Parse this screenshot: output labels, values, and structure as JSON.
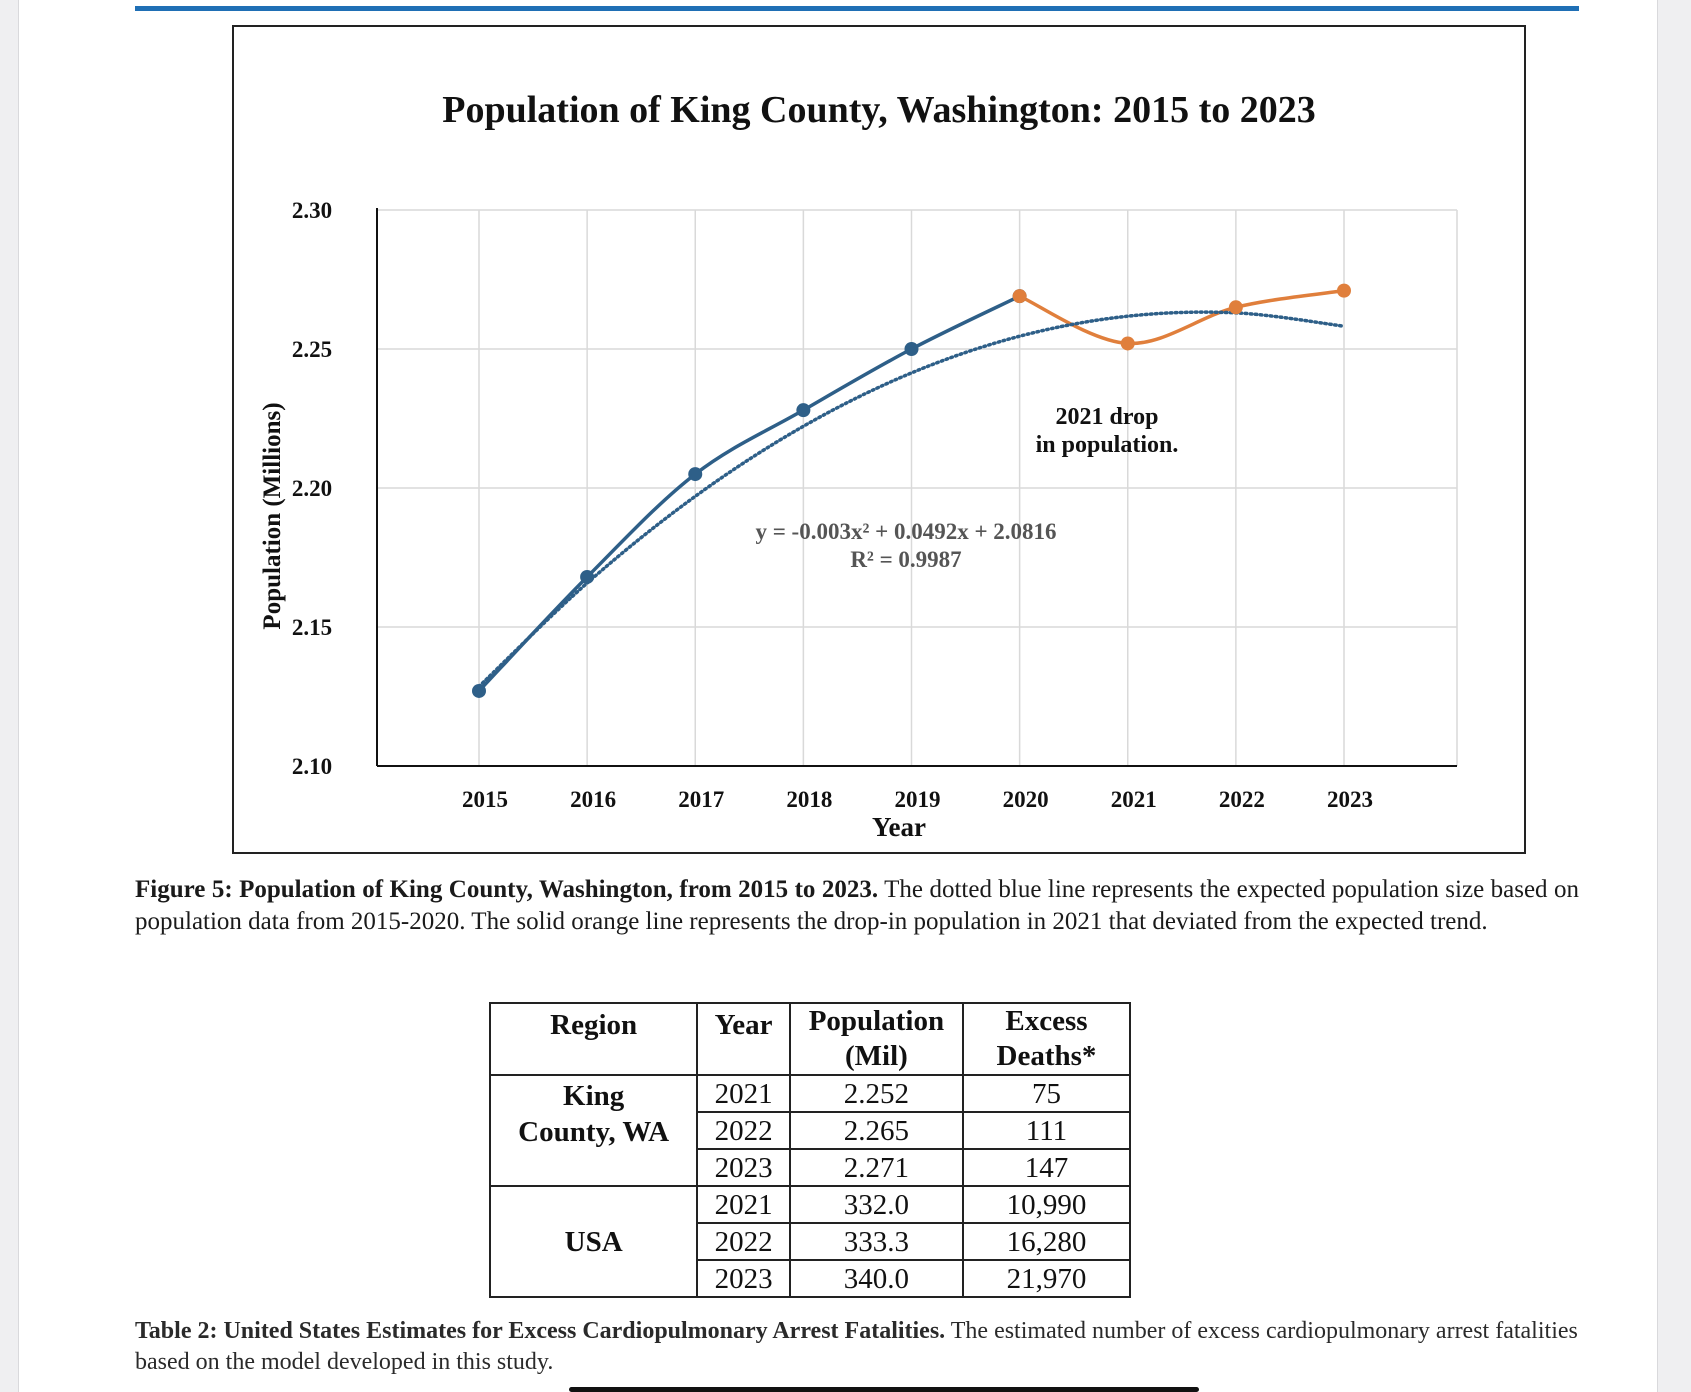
{
  "chart_data": {
    "type": "line",
    "title": "Population of King County, Washington: 2015 to 2023",
    "xlabel": "Year",
    "ylabel": "Population (Millions)",
    "categories": [
      "2015",
      "2016",
      "2017",
      "2018",
      "2019",
      "2020",
      "2021",
      "2022",
      "2023"
    ],
    "ylim": [
      2.1,
      2.3
    ],
    "yticks": [
      "2.10",
      "2.15",
      "2.20",
      "2.25",
      "2.30"
    ],
    "grid": true,
    "series": [
      {
        "color": "#2e5f88",
        "style": "solid",
        "x": [
          2015,
          2016,
          2017,
          2018,
          2019,
          2020
        ],
        "values": [
          2.127,
          2.168,
          2.205,
          2.228,
          2.25,
          2.269
        ]
      },
      {
        "color": "#e07f3c",
        "style": "solid",
        "x": [
          2020,
          2021,
          2022,
          2023
        ],
        "values": [
          2.269,
          2.252,
          2.265,
          2.271
        ]
      },
      {
        "color": "#2e5f88",
        "style": "dotted",
        "x": [
          2015,
          2016,
          2017,
          2018,
          2019,
          2020,
          2021,
          2022,
          2023
        ],
        "values": [
          2.1286,
          2.1658,
          2.197,
          2.2222,
          2.2414,
          2.2546,
          2.2618,
          2.263,
          2.2582
        ]
      }
    ],
    "annotations": {
      "equation": "y = -0.003x² + 0.0492x + 2.0816",
      "r_squared": "R² = 0.9987",
      "drop_line1": "2021 drop",
      "drop_line2": "in population."
    }
  },
  "caption": {
    "bold": "Figure 5: Population of King County, Washington, from 2015 to 2023.",
    "text": " The dotted blue line represents the expected population size based on population data from 2015-2020. The solid orange line represents the drop-in population in 2021 that deviated from the expected trend."
  },
  "table": {
    "headers": {
      "region": "Region",
      "year": "Year",
      "population_1": "Population",
      "population_2": "(Mil)",
      "excess_1": "Excess",
      "excess_2": "Deaths*"
    },
    "region_king_1": "King",
    "region_king_2": "County, WA",
    "region_usa": "USA",
    "rows": [
      {
        "year": "2021",
        "population": "2.252",
        "excess": "75"
      },
      {
        "year": "2022",
        "population": "2.265",
        "excess": "111"
      },
      {
        "year": "2023",
        "population": "2.271",
        "excess": "147"
      },
      {
        "year": "2021",
        "population": "332.0",
        "excess": "10,990"
      },
      {
        "year": "2022",
        "population": "333.3",
        "excess": "16,280"
      },
      {
        "year": "2023",
        "population": "340.0",
        "excess": "21,970"
      }
    ]
  },
  "table_caption": {
    "bold": "Table 2: United States Estimates for Excess Cardiopulmonary Arrest Fatalities.",
    "text": " The estimated number of excess cardiopulmonary arrest fatalities based on the model developed in this study."
  },
  "colors": {
    "accent_rule": "#1f6fb5",
    "expected_line": "#2e5f88",
    "actual_line": "#e07f3c"
  }
}
